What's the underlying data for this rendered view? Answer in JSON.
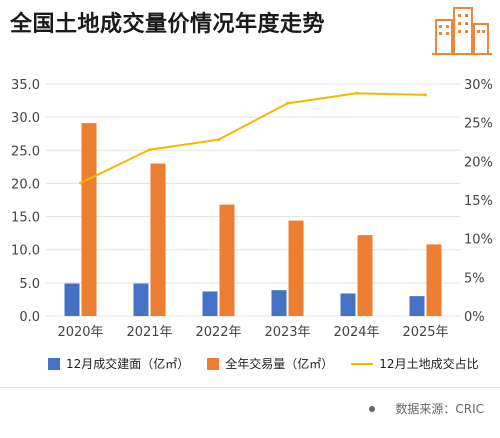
{
  "title": "全国土地成交量价情况年度走势",
  "icons": {
    "logo": "building-logo-icon"
  },
  "colors": {
    "bar_area": "#4472C4",
    "bar_volume": "#ED7D31",
    "line_share": "#F2B800"
  },
  "chart_data": {
    "type": "bar",
    "categories": [
      "2020年",
      "2021年",
      "2022年",
      "2023年",
      "2024年",
      "2025年"
    ],
    "series": [
      {
        "name": "12月成交建面（亿㎡）",
        "type": "bar",
        "axis": "left",
        "values": [
          4.9,
          4.9,
          3.7,
          3.9,
          3.4,
          3.0
        ]
      },
      {
        "name": "全年交易量（亿㎡）",
        "type": "bar",
        "axis": "left",
        "values": [
          29.1,
          23.0,
          16.8,
          14.4,
          12.2,
          10.8
        ]
      },
      {
        "name": "12月土地成交占比",
        "type": "line",
        "axis": "right",
        "values": [
          17.2,
          21.5,
          22.8,
          27.5,
          28.8,
          28.6
        ]
      }
    ],
    "y_left": {
      "ylim": [
        0,
        35
      ],
      "ticks": [
        "0.0",
        "5.0",
        "10.0",
        "15.0",
        "20.0",
        "25.0",
        "30.0",
        "35.0"
      ]
    },
    "y_right": {
      "ylim": [
        0,
        30
      ],
      "ticks": [
        "0%",
        "5%",
        "10%",
        "15%",
        "20%",
        "25%",
        "30%"
      ]
    },
    "grid": true,
    "legend_position": "bottom"
  },
  "source": "数据来源：CRIC"
}
